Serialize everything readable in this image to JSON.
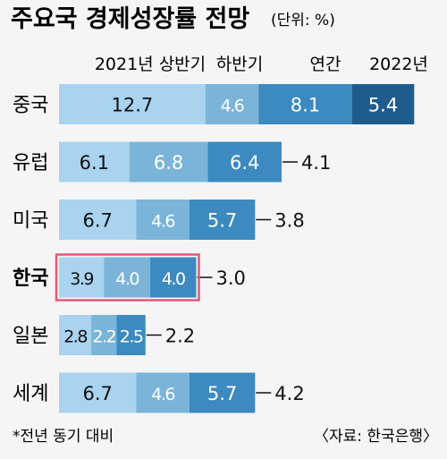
{
  "chart_data": {
    "type": "bar",
    "stacked": true,
    "orientation": "horizontal",
    "title": "주요국 경제성장률 전망",
    "unit": "(단위: %)",
    "series": [
      {
        "name": "2021년 상반기",
        "values": [
          12.7,
          6.1,
          6.7,
          3.9,
          2.8,
          6.7
        ],
        "color": "#a9d3ef"
      },
      {
        "name": "하반기",
        "values": [
          4.6,
          6.8,
          4.6,
          4.0,
          2.2,
          4.6
        ],
        "color": "#7ab4d8"
      },
      {
        "name": "연간",
        "values": [
          8.1,
          6.4,
          5.7,
          4.0,
          2.5,
          5.7
        ],
        "color": "#3c8abf"
      },
      {
        "name": "2022년",
        "values": [
          5.4,
          4.1,
          3.8,
          3.0,
          2.2,
          4.2
        ],
        "color": "#1f5c8e"
      }
    ],
    "categories": [
      "중국",
      "유럽",
      "미국",
      "한국",
      "일본",
      "세계"
    ],
    "highlight": "한국",
    "footnote": "*전년 동기 대비",
    "source": "〈자료: 한국은행〉"
  }
}
